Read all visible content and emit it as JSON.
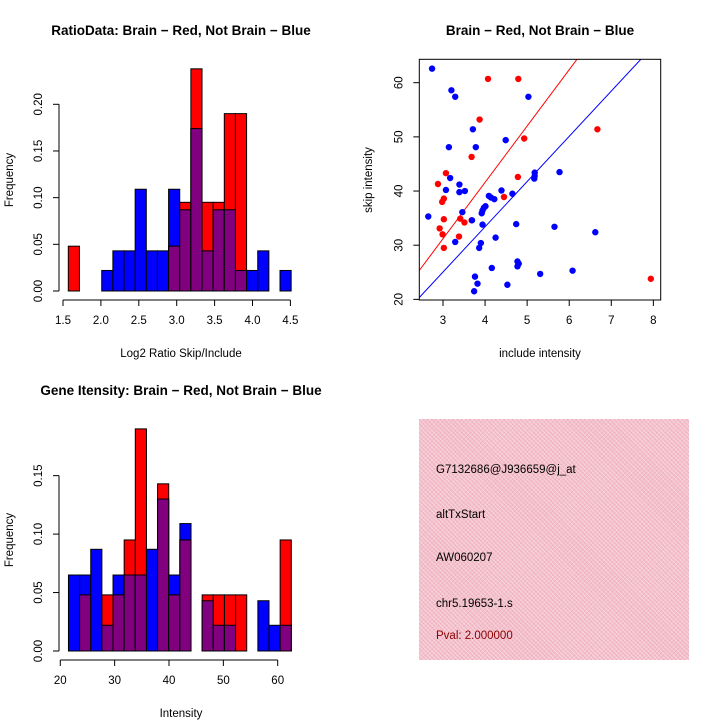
{
  "colors": {
    "red": "#ff0000",
    "blue": "#0000ff",
    "overlap": "#800080",
    "info_bg": "#f3bfcb",
    "pval": "#8b0000"
  },
  "chart_data": [
    {
      "type": "bar",
      "subtype": "overlaid-histogram",
      "title": "RatioData: Brain − Red, Not Brain − Blue",
      "xlabel": "Log2 Ratio Skip/Include",
      "ylabel": "Frequency",
      "xlim": [
        1.5,
        4.6
      ],
      "ylim": [
        0,
        0.24
      ],
      "xticks": [
        "1.5",
        "2.0",
        "2.5",
        "3.0",
        "3.5",
        "4.0",
        "4.5"
      ],
      "xtick_values": [
        1.5,
        2.0,
        2.5,
        3.0,
        3.5,
        4.0,
        4.5
      ],
      "yticks": [
        "0.00",
        "0.05",
        "0.10",
        "0.15",
        "0.20"
      ],
      "ytick_values": [
        0,
        0.05,
        0.1,
        0.15,
        0.2
      ],
      "break_start": 1.57,
      "bin_width": 0.147,
      "series": [
        {
          "name": "Not Brain",
          "color": "blue",
          "values": [
            0,
            0,
            0,
            0.022,
            0.043,
            0.043,
            0.109,
            0.043,
            0.043,
            0.109,
            0.087,
            0.174,
            0.043,
            0.087,
            0.087,
            0.022,
            0.022,
            0.043,
            0,
            0.022
          ]
        },
        {
          "name": "Brain",
          "color": "red",
          "values": [
            0.048,
            0,
            0,
            0,
            0,
            0,
            0,
            0,
            0,
            0.048,
            0.095,
            0.238,
            0.095,
            0.095,
            0.19,
            0.19,
            0,
            0,
            0,
            0
          ]
        }
      ]
    },
    {
      "type": "scatter",
      "title": "Brain − Red, Not Brain − Blue",
      "xlabel": "include intensity",
      "ylabel": "skip intensity",
      "xlim": [
        2.44,
        8.17
      ],
      "ylim": [
        19.9,
        64.3
      ],
      "xticks": [
        "3",
        "4",
        "5",
        "6",
        "7",
        "8"
      ],
      "xtick_values": [
        3,
        4,
        5,
        6,
        7,
        8
      ],
      "yticks": [
        "20",
        "30",
        "40",
        "50",
        "60"
      ],
      "ytick_values": [
        20,
        30,
        40,
        50,
        60
      ],
      "lines": [
        {
          "name": "brain-fit",
          "color": "red",
          "intercept": 0,
          "slope": 10.4
        },
        {
          "name": "not-brain-fit",
          "color": "blue",
          "intercept": 0,
          "slope": 8.35
        }
      ],
      "series": [
        {
          "name": "Brain",
          "color": "red",
          "points": [
            [
              4.07,
              60.7
            ],
            [
              4.79,
              60.7
            ],
            [
              3.87,
              53.2
            ],
            [
              6.67,
              51.4
            ],
            [
              4.93,
              49.7
            ],
            [
              3.68,
              46.3
            ],
            [
              3.07,
              43.3
            ],
            [
              4.78,
              42.6
            ],
            [
              2.88,
              41.3
            ],
            [
              3.02,
              38.6
            ],
            [
              2.98,
              38.0
            ],
            [
              4.45,
              38.9
            ],
            [
              3.02,
              34.8
            ],
            [
              3.68,
              34.6
            ],
            [
              3.41,
              34.9
            ],
            [
              3.51,
              34.2
            ],
            [
              2.92,
              33.1
            ],
            [
              2.99,
              32.0
            ],
            [
              3.38,
              31.6
            ],
            [
              3.02,
              29.5
            ],
            [
              7.94,
              23.8
            ]
          ]
        },
        {
          "name": "Not Brain",
          "color": "blue",
          "points": [
            [
              2.74,
              62.6
            ],
            [
              3.2,
              58.6
            ],
            [
              3.29,
              57.4
            ],
            [
              5.03,
              57.4
            ],
            [
              3.71,
              51.4
            ],
            [
              3.14,
              48.1
            ],
            [
              3.78,
              48.1
            ],
            [
              4.49,
              49.4
            ],
            [
              3.17,
              42.4
            ],
            [
              5.18,
              43.4
            ],
            [
              5.18,
              42.8
            ],
            [
              5.17,
              42.3
            ],
            [
              5.77,
              43.5
            ],
            [
              3.39,
              41.2
            ],
            [
              3.39,
              39.8
            ],
            [
              3.07,
              40.2
            ],
            [
              3.52,
              40.0
            ],
            [
              4.39,
              40.1
            ],
            [
              4.65,
              39.5
            ],
            [
              4.09,
              39.1
            ],
            [
              4.14,
              38.8
            ],
            [
              4.22,
              38.5
            ],
            [
              4.01,
              37.2
            ],
            [
              3.97,
              36.9
            ],
            [
              3.94,
              36.4
            ],
            [
              3.92,
              35.9
            ],
            [
              3.46,
              36.1
            ],
            [
              2.65,
              35.3
            ],
            [
              3.69,
              34.6
            ],
            [
              3.94,
              33.8
            ],
            [
              4.74,
              33.9
            ],
            [
              5.65,
              33.4
            ],
            [
              6.62,
              32.4
            ],
            [
              4.25,
              31.4
            ],
            [
              3.29,
              30.6
            ],
            [
              3.9,
              30.4
            ],
            [
              3.86,
              29.5
            ],
            [
              4.77,
              27.0
            ],
            [
              4.8,
              26.6
            ],
            [
              4.77,
              26.1
            ],
            [
              4.16,
              25.8
            ],
            [
              6.08,
              25.3
            ],
            [
              5.31,
              24.7
            ],
            [
              3.76,
              24.2
            ],
            [
              3.82,
              22.9
            ],
            [
              4.53,
              22.7
            ],
            [
              3.74,
              21.5
            ]
          ]
        }
      ]
    },
    {
      "type": "bar",
      "subtype": "overlaid-histogram",
      "title": "Gene Itensity: Brain − Red, Not Brain − Blue",
      "xlabel": "Intensity",
      "ylabel": "Frequency",
      "xlim": [
        20,
        64
      ],
      "ylim": [
        0,
        0.19
      ],
      "xticks": [
        "20",
        "30",
        "40",
        "50",
        "60"
      ],
      "xtick_values": [
        20,
        30,
        40,
        50,
        60
      ],
      "yticks": [
        "0.00",
        "0.05",
        "0.10",
        "0.15"
      ],
      "ytick_values": [
        0,
        0.05,
        0.1,
        0.15
      ],
      "break_start": 21.5,
      "bin_width": 2.05,
      "series": [
        {
          "name": "Not Brain",
          "color": "blue",
          "values": [
            0.065,
            0.065,
            0.087,
            0.022,
            0.065,
            0.065,
            0.065,
            0.087,
            0.13,
            0.065,
            0.109,
            0,
            0.043,
            0.022,
            0.022,
            0,
            0,
            0.043,
            0.022,
            0.022
          ]
        },
        {
          "name": "Brain",
          "color": "red",
          "values": [
            0,
            0.048,
            0,
            0.048,
            0.048,
            0.095,
            0.19,
            0,
            0.143,
            0.048,
            0.095,
            0,
            0.048,
            0.048,
            0.048,
            0.048,
            0,
            0,
            0,
            0.095
          ]
        }
      ]
    }
  ],
  "info": {
    "probe": "G7132686@J936659@j_at",
    "event_type": "altTxStart",
    "accession": "AW060207",
    "location": "chr5.19653-1.s",
    "pval": "Pval: 2.000000"
  }
}
